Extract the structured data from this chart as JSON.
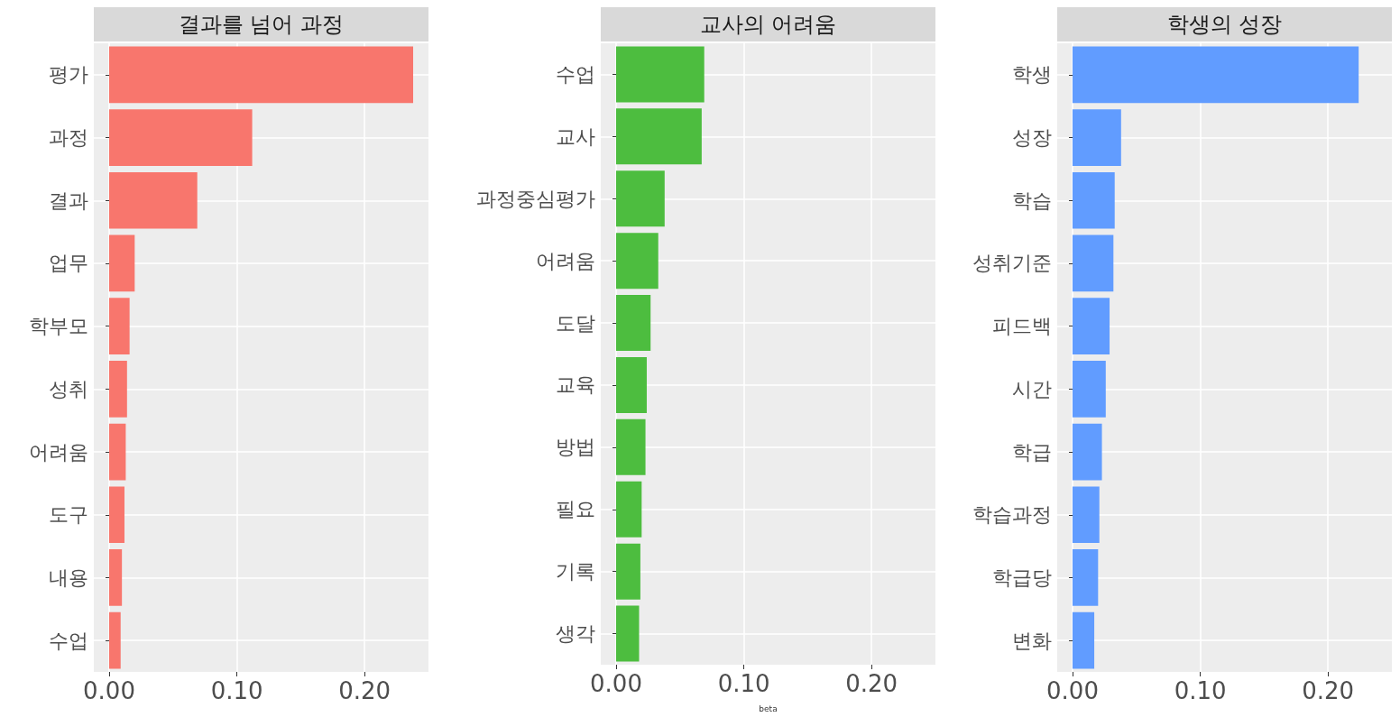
{
  "chart_data": [
    {
      "type": "bar",
      "orientation": "horizontal",
      "title": "결과를 넘어 과정",
      "categories": [
        "평가",
        "과정",
        "결과",
        "업무",
        "학부모",
        "성취",
        "어려움",
        "도구",
        "내용",
        "수업"
      ],
      "values": [
        0.238,
        0.112,
        0.069,
        0.02,
        0.016,
        0.014,
        0.013,
        0.012,
        0.01,
        0.009
      ],
      "color": "#f8766d",
      "xlim": [
        -0.012,
        0.25
      ],
      "xticks": [
        {
          "value": 0,
          "label": "0.00"
        },
        {
          "value": 0.1,
          "label": "0.10"
        },
        {
          "value": 0.2,
          "label": "0.20"
        }
      ],
      "grid": true
    },
    {
      "type": "bar",
      "orientation": "horizontal",
      "title": "교사의 어려움",
      "xlabel": "beta",
      "categories": [
        "수업",
        "교사",
        "과정중심평가",
        "어려움",
        "도달",
        "교육",
        "방법",
        "필요",
        "기록",
        "생각"
      ],
      "values": [
        0.069,
        0.067,
        0.038,
        0.033,
        0.027,
        0.024,
        0.023,
        0.02,
        0.019,
        0.018
      ],
      "color": "#4dbd3f",
      "xlim": [
        -0.012,
        0.25
      ],
      "xticks": [
        {
          "value": 0,
          "label": "0.00"
        },
        {
          "value": 0.1,
          "label": "0.10"
        },
        {
          "value": 0.2,
          "label": "0.20"
        }
      ],
      "grid": true
    },
    {
      "type": "bar",
      "orientation": "horizontal",
      "title": "학생의 성장",
      "categories": [
        "학생",
        "성장",
        "학습",
        "성취기준",
        "피드백",
        "시간",
        "학급",
        "학습과정",
        "학급당",
        "변화"
      ],
      "values": [
        0.224,
        0.038,
        0.033,
        0.032,
        0.029,
        0.026,
        0.023,
        0.021,
        0.02,
        0.017
      ],
      "color": "#619cff",
      "xlim": [
        -0.012,
        0.25
      ],
      "xticks": [
        {
          "value": 0,
          "label": "0.00"
        },
        {
          "value": 0.1,
          "label": "0.10"
        },
        {
          "value": 0.2,
          "label": "0.20"
        }
      ],
      "grid": true
    }
  ]
}
